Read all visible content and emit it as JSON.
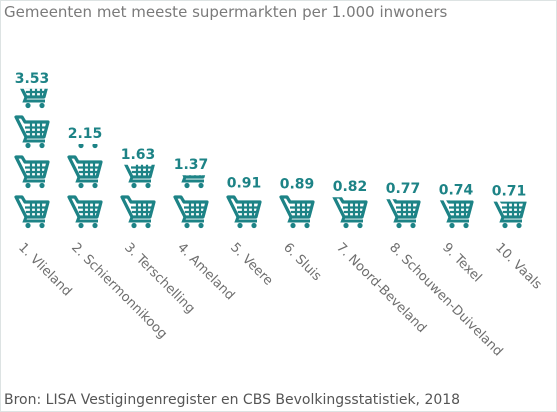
{
  "chart_data": {
    "type": "pictogram",
    "title": "Gemeenten met meeste supermarkten per 1.000 inwoners",
    "source": "Bron: LISA Vestigingenregister en CBS Bevolkingsstatistiek, 2018",
    "categories": [
      "1. Vlieland",
      "2. Schiermonnikoog",
      "3. Terschelling",
      "4. Ameland",
      "5. Veere",
      "6. Sluis",
      "7. Noord-Beveland",
      "8. Schouwen-Duiveland",
      "9. Texel",
      "10. Vaals"
    ],
    "values": [
      3.53,
      2.15,
      1.63,
      1.37,
      0.91,
      0.89,
      0.82,
      0.77,
      0.74,
      0.71
    ],
    "color": "#1d8386"
  }
}
